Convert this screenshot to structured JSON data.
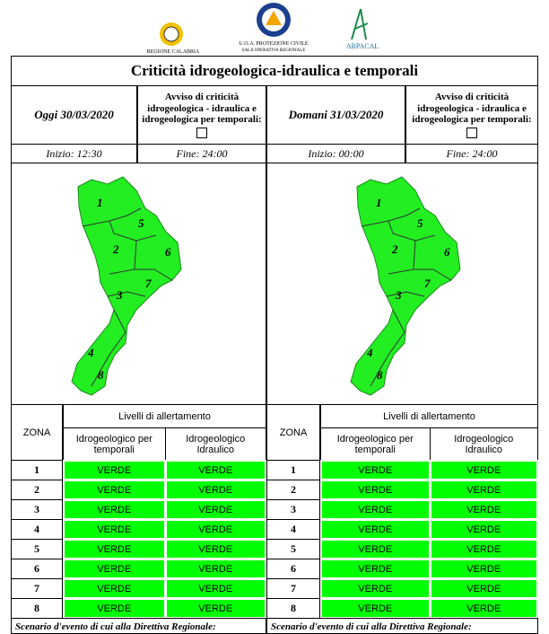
{
  "header": {
    "logos": [
      "REGIONE CALABRIA",
      "U.O.A. PROTEZIONE CIVILE",
      "SALA OPERATIVA REGIONALE",
      "ARPACAL"
    ]
  },
  "title": "Criticità idrogeologica-idraulica e temporali",
  "panels": [
    {
      "date": "Oggi 30/03/2020",
      "avviso": "Avviso di criticità idrogeologica - idraulica e idrogeologica per temporali:",
      "inizio": "Inizio: 12:30",
      "fine": "Fine: 24:00",
      "map_zones": [
        "1",
        "5",
        "2",
        "6",
        "3",
        "7",
        "4",
        "8"
      ],
      "table": {
        "zona_header": "ZONA",
        "levels_header": "Livelli di allertamento",
        "columns": [
          "Idrogeologico per temporali",
          "Idrogeologico Idraulico"
        ],
        "rows": [
          [
            "1",
            "VERDE",
            "VERDE"
          ],
          [
            "2",
            "VERDE",
            "VERDE"
          ],
          [
            "3",
            "VERDE",
            "VERDE"
          ],
          [
            "4",
            "VERDE",
            "VERDE"
          ],
          [
            "5",
            "VERDE",
            "VERDE"
          ],
          [
            "6",
            "VERDE",
            "VERDE"
          ],
          [
            "7",
            "VERDE",
            "VERDE"
          ],
          [
            "8",
            "VERDE",
            "VERDE"
          ]
        ]
      },
      "scenario": "Scenario d'evento di cui alla Direttiva Regionale:"
    },
    {
      "date": "Domani 31/03/2020",
      "avviso": "Avviso di criticità idrogeologica - idraulica e idrogeologica per temporali:",
      "inizio": "Inizio: 00:00",
      "fine": "Fine: 24:00",
      "map_zones": [
        "1",
        "5",
        "2",
        "6",
        "3",
        "7",
        "4",
        "8"
      ],
      "table": {
        "zona_header": "ZONA",
        "levels_header": "Livelli di allertamento",
        "columns": [
          "Idrogeologico per temporali",
          "Idrogeologico Idraulico"
        ],
        "rows": [
          [
            "1",
            "VERDE",
            "VERDE"
          ],
          [
            "2",
            "VERDE",
            "VERDE"
          ],
          [
            "3",
            "VERDE",
            "VERDE"
          ],
          [
            "4",
            "VERDE",
            "VERDE"
          ],
          [
            "5",
            "VERDE",
            "VERDE"
          ],
          [
            "6",
            "VERDE",
            "VERDE"
          ],
          [
            "7",
            "VERDE",
            "VERDE"
          ],
          [
            "8",
            "VERDE",
            "VERDE"
          ]
        ]
      },
      "scenario": "Scenario d'evento di cui alla Direttiva Regionale:"
    }
  ]
}
